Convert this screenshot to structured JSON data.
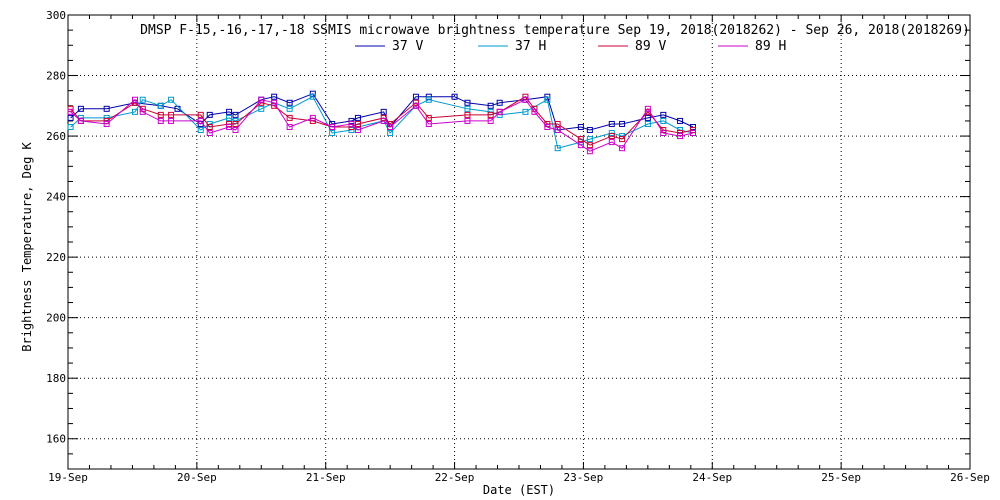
{
  "chart_data": {
    "type": "line",
    "title": "DMSP F-15,-16,-17,-18 SSMIS microwave brightness temperature Sep 19, 2018(2018262) - Sep 26, 2018(2018269)",
    "xlabel": "Date (EST)",
    "ylabel": "Brightness Temperature, Deg K",
    "xlim": [
      0,
      7
    ],
    "ylim": [
      150,
      300
    ],
    "x_ticks": [
      {
        "value": 0,
        "label": "19-Sep"
      },
      {
        "value": 1,
        "label": "20-Sep"
      },
      {
        "value": 2,
        "label": "21-Sep"
      },
      {
        "value": 3,
        "label": "22-Sep"
      },
      {
        "value": 4,
        "label": "23-Sep"
      },
      {
        "value": 5,
        "label": "24-Sep"
      },
      {
        "value": 6,
        "label": "25-Sep"
      },
      {
        "value": 7,
        "label": "26-Sep"
      }
    ],
    "y_ticks": [
      {
        "value": 160,
        "label": "160"
      },
      {
        "value": 180,
        "label": "180"
      },
      {
        "value": 200,
        "label": "200"
      },
      {
        "value": 220,
        "label": "220"
      },
      {
        "value": 240,
        "label": "240"
      },
      {
        "value": 260,
        "label": "260"
      },
      {
        "value": 280,
        "label": "280"
      },
      {
        "value": 300,
        "label": "300"
      }
    ],
    "grid": true,
    "legend_position": "top-center",
    "series": [
      {
        "name": "37 V",
        "color": "#0000aa",
        "x": [
          0.02,
          0.1,
          0.3,
          0.52,
          0.72,
          0.85,
          1.03,
          1.1,
          1.25,
          1.3,
          1.5,
          1.6,
          1.72,
          1.9,
          2.05,
          2.2,
          2.25,
          2.45,
          2.5,
          2.7,
          2.8,
          3.0,
          3.1,
          3.28,
          3.35,
          3.55,
          3.72,
          3.8,
          3.98,
          4.05,
          4.22,
          4.3,
          4.5,
          4.62,
          4.75,
          4.85
        ],
        "y": [
          266,
          269,
          269,
          271,
          270,
          269,
          264,
          267,
          268,
          267,
          272,
          273,
          271,
          274,
          264,
          265,
          266,
          268,
          263,
          273,
          273,
          273,
          271,
          270,
          271,
          272,
          273,
          262,
          263,
          262,
          264,
          264,
          266,
          267,
          265,
          263
        ]
      },
      {
        "name": "37 H",
        "color": "#0099cc",
        "x": [
          0.02,
          0.1,
          0.3,
          0.52,
          0.58,
          0.72,
          0.8,
          1.03,
          1.1,
          1.25,
          1.3,
          1.5,
          1.6,
          1.72,
          1.9,
          2.05,
          2.2,
          2.25,
          2.45,
          2.5,
          2.7,
          2.8,
          3.1,
          3.28,
          3.35,
          3.55,
          3.72,
          3.8,
          3.98,
          4.05,
          4.22,
          4.3,
          4.5,
          4.62,
          4.75,
          4.85
        ],
        "y": [
          263,
          266,
          266,
          268,
          272,
          270,
          272,
          262,
          264,
          266,
          265,
          269,
          271,
          269,
          273,
          261,
          262,
          263,
          265,
          261,
          270,
          272,
          269,
          268,
          267,
          268,
          272,
          256,
          258,
          259,
          261,
          260,
          264,
          265,
          262,
          261
        ]
      },
      {
        "name": "89 V",
        "color": "#cc0033",
        "x": [
          0.02,
          0.1,
          0.3,
          0.52,
          0.58,
          0.72,
          0.8,
          1.03,
          1.1,
          1.25,
          1.3,
          1.5,
          1.6,
          1.72,
          1.9,
          2.05,
          2.2,
          2.25,
          2.45,
          2.5,
          2.7,
          2.8,
          3.1,
          3.28,
          3.35,
          3.55,
          3.62,
          3.72,
          3.8,
          3.98,
          4.05,
          4.22,
          4.3,
          4.5,
          4.62,
          4.75,
          4.85
        ],
        "y": [
          269,
          265,
          265,
          271,
          269,
          267,
          267,
          267,
          263,
          264,
          264,
          271,
          270,
          266,
          265,
          263,
          263,
          264,
          266,
          264,
          271,
          266,
          267,
          267,
          268,
          273,
          269,
          264,
          264,
          259,
          257,
          260,
          259,
          268,
          262,
          261,
          262
        ]
      },
      {
        "name": "89 H",
        "color": "#cc00cc",
        "x": [
          0.02,
          0.1,
          0.3,
          0.52,
          0.58,
          0.72,
          0.8,
          1.03,
          1.1,
          1.25,
          1.3,
          1.5,
          1.6,
          1.72,
          1.9,
          2.05,
          2.2,
          2.25,
          2.45,
          2.5,
          2.7,
          2.8,
          3.1,
          3.28,
          3.35,
          3.55,
          3.62,
          3.72,
          3.8,
          3.98,
          4.05,
          4.22,
          4.3,
          4.5,
          4.62,
          4.75,
          4.85
        ],
        "y": [
          268,
          265,
          264,
          272,
          268,
          265,
          265,
          265,
          261,
          263,
          262,
          272,
          271,
          263,
          266,
          263,
          264,
          262,
          265,
          263,
          270,
          264,
          265,
          265,
          268,
          272,
          268,
          263,
          262,
          257,
          255,
          258,
          256,
          269,
          261,
          260,
          261
        ]
      }
    ]
  }
}
